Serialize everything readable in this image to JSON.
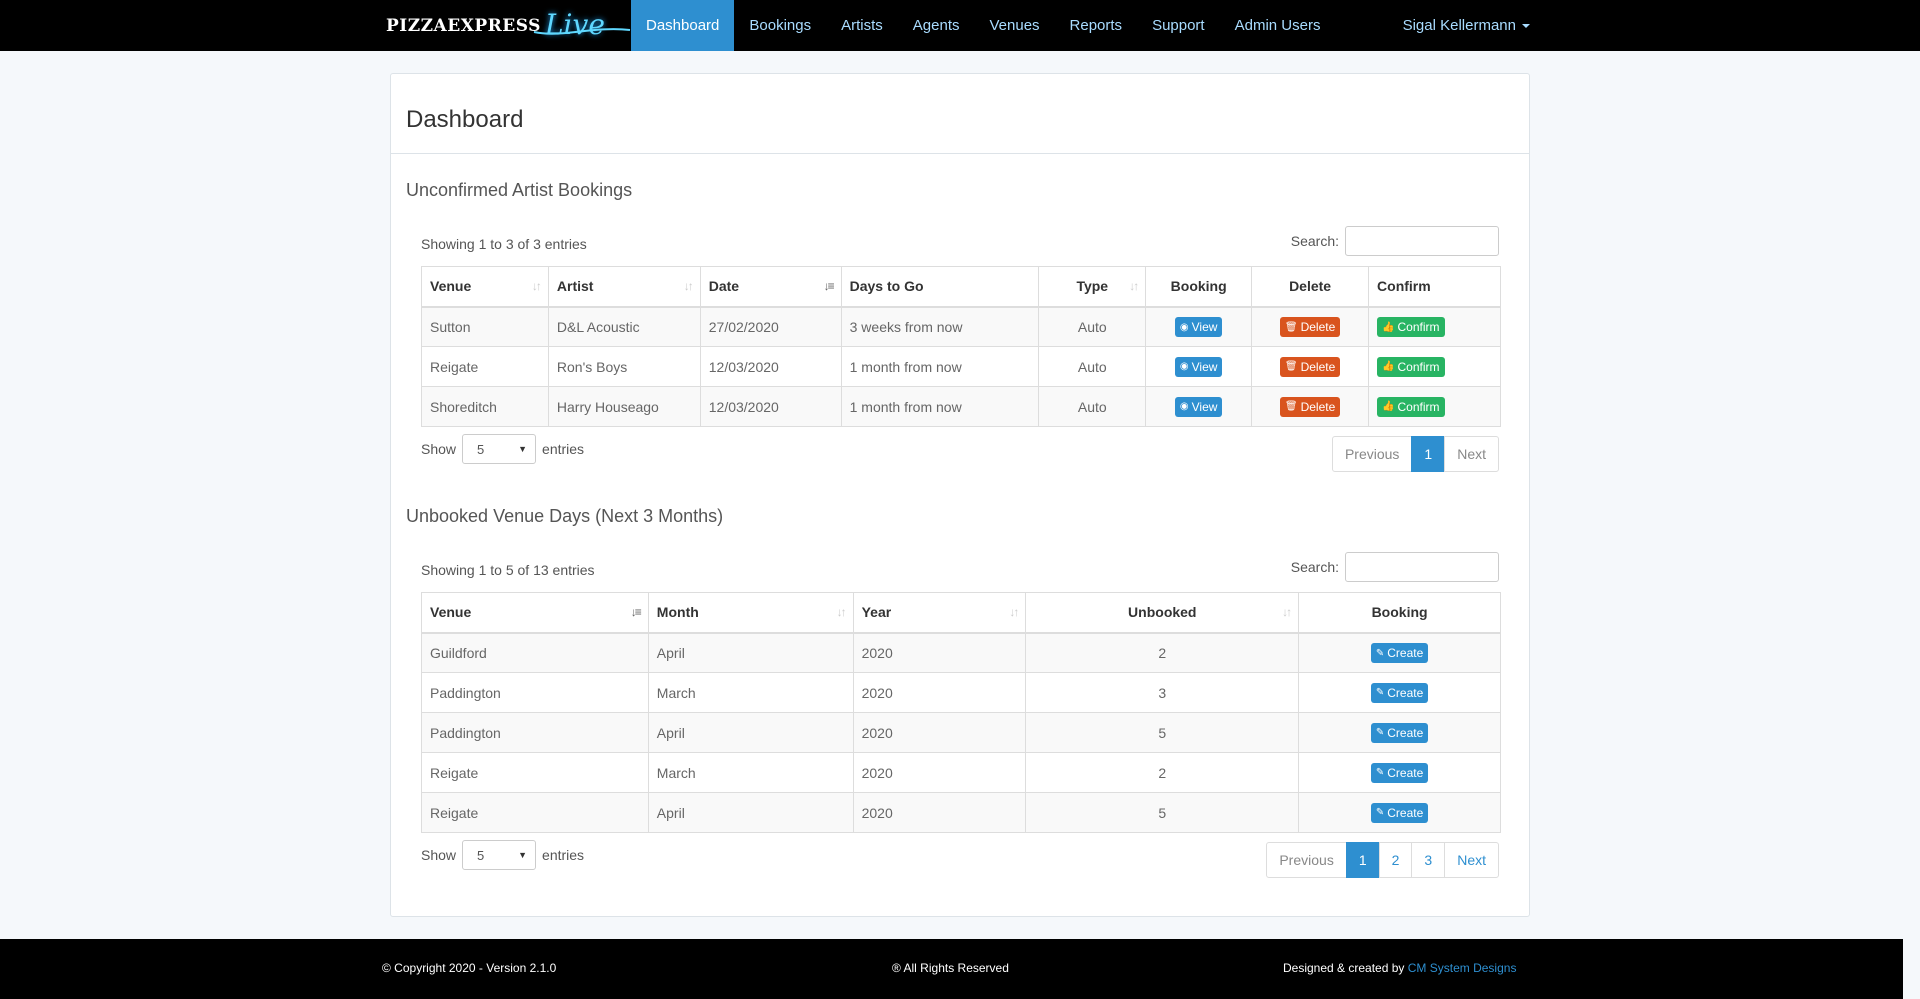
{
  "brand": {
    "name": "PIZZAEXPRESS",
    "sub": "Live"
  },
  "nav": [
    {
      "label": "Dashboard",
      "active": true
    },
    {
      "label": "Bookings"
    },
    {
      "label": "Artists"
    },
    {
      "label": "Agents"
    },
    {
      "label": "Venues"
    },
    {
      "label": "Reports"
    },
    {
      "label": "Support"
    },
    {
      "label": "Admin Users"
    }
  ],
  "user": {
    "name": "Sigal Kellermann"
  },
  "page": {
    "title": "Dashboard"
  },
  "unconfirmed": {
    "title": "Unconfirmed Artist Bookings",
    "info": "Showing 1 to 3 of 3 entries",
    "search_label": "Search:",
    "columns": [
      "Venue",
      "Artist",
      "Date",
      "Days to Go",
      "Type",
      "Booking",
      "Delete",
      "Confirm"
    ],
    "rows": [
      {
        "venue": "Sutton",
        "artist": "D&L Acoustic",
        "date": "27/02/2020",
        "days": "3 weeks from now",
        "type": "Auto"
      },
      {
        "venue": "Reigate",
        "artist": "Ron's Boys",
        "date": "12/03/2020",
        "days": "1 month from now",
        "type": "Auto"
      },
      {
        "venue": "Shoreditch",
        "artist": "Harry Houseago",
        "date": "12/03/2020",
        "days": "1 month from now",
        "type": "Auto"
      }
    ],
    "view_label": "View",
    "delete_label": "Delete",
    "confirm_label": "Confirm",
    "show_label": "Show",
    "show_value": "5",
    "entries_label": "entries",
    "pager": {
      "previous": "Previous",
      "pages": [
        "1"
      ],
      "next": "Next"
    }
  },
  "unbooked": {
    "title": "Unbooked Venue Days (Next 3 Months)",
    "info": "Showing 1 to 5 of 13 entries",
    "search_label": "Search:",
    "columns": [
      "Venue",
      "Month",
      "Year",
      "Unbooked",
      "Booking"
    ],
    "rows": [
      {
        "venue": "Guildford",
        "month": "April",
        "year": "2020",
        "unbooked": "2"
      },
      {
        "venue": "Paddington",
        "month": "March",
        "year": "2020",
        "unbooked": "3"
      },
      {
        "venue": "Paddington",
        "month": "April",
        "year": "2020",
        "unbooked": "5"
      },
      {
        "venue": "Reigate",
        "month": "March",
        "year": "2020",
        "unbooked": "2"
      },
      {
        "venue": "Reigate",
        "month": "April",
        "year": "2020",
        "unbooked": "5"
      }
    ],
    "create_label": "Create",
    "show_label": "Show",
    "show_value": "5",
    "entries_label": "entries",
    "pager": {
      "previous": "Previous",
      "pages": [
        "1",
        "2",
        "3"
      ],
      "next": "Next"
    }
  },
  "footer": {
    "copyright": "© Copyright 2020 - Version 2.1.0",
    "rights": "® All Rights Reserved",
    "designed": "Designed & created by",
    "designer": "CM System Designs"
  },
  "colors": {
    "accent": "#2e8fd0",
    "danger": "#d9541e",
    "success": "#28b463",
    "navbar": "#000000"
  }
}
